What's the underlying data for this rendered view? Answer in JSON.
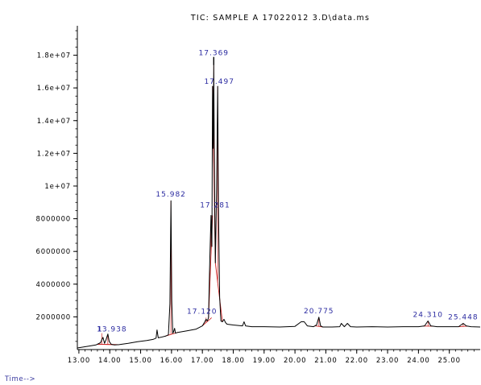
{
  "chart_data": {
    "type": "line",
    "title": "TIC: SAMPLE A  17022012 3.D\\data.ms",
    "xlabel": "Time-->",
    "ylabel": "",
    "x_ticks": [
      "13.00",
      "14.00",
      "15.00",
      "16.00",
      "17.00",
      "18.00",
      "19.00",
      "20.00",
      "21.00",
      "22.00",
      "23.00",
      "24.00",
      "25.00"
    ],
    "y_ticks": [
      "2000000",
      "4000000",
      "6000000",
      "8000000",
      "1e+07",
      "1.2e+07",
      "1.4e+07",
      "1.6e+07",
      "1.8e+07"
    ],
    "xlim": [
      12.95,
      26.0
    ],
    "ylim": [
      0,
      19800000
    ],
    "grid": false,
    "series": [
      {
        "color": "#000000",
        "x": [
          12.95,
          13.3,
          13.55,
          13.7,
          13.78,
          13.83,
          13.88,
          13.938,
          13.98,
          14.05,
          14.15,
          14.3,
          14.6,
          14.9,
          15.2,
          15.4,
          15.5,
          15.53,
          15.57,
          15.65,
          15.8,
          15.9,
          15.95,
          15.982,
          16.01,
          16.04,
          16.07,
          16.1,
          16.13,
          16.2,
          16.5,
          16.8,
          17.0,
          17.08,
          17.12,
          17.16,
          17.2,
          17.24,
          17.281,
          17.31,
          17.33,
          17.35,
          17.369,
          17.39,
          17.42,
          17.46,
          17.497,
          17.52,
          17.56,
          17.6,
          17.65,
          17.7,
          17.75,
          17.8,
          18.0,
          18.3,
          18.35,
          18.4,
          18.6,
          19.0,
          19.5,
          20.0,
          20.2,
          20.3,
          20.4,
          20.6,
          20.7,
          20.775,
          20.83,
          20.9,
          21.2,
          21.45,
          21.5,
          21.6,
          21.7,
          21.8,
          22.0,
          22.5,
          23.0,
          23.5,
          24.0,
          24.2,
          24.31,
          24.4,
          24.6,
          25.0,
          25.3,
          25.448,
          25.55,
          25.7,
          26.0
        ],
        "y": [
          100000,
          200000,
          280000,
          420000,
          750000,
          380000,
          600000,
          950000,
          500000,
          320000,
          280000,
          300000,
          380000,
          480000,
          550000,
          620000,
          700000,
          1200000,
          720000,
          750000,
          820000,
          900000,
          2800000,
          9100000,
          3000000,
          1000000,
          1100000,
          1300000,
          1000000,
          1050000,
          1150000,
          1250000,
          1450000,
          1700000,
          1850000,
          1750000,
          1950000,
          5500000,
          8200000,
          6300000,
          16100000,
          12300000,
          17400000,
          10800000,
          5300000,
          9800000,
          16100000,
          8800000,
          3200000,
          1750000,
          1700000,
          1850000,
          1650000,
          1550000,
          1500000,
          1450000,
          1700000,
          1450000,
          1400000,
          1400000,
          1380000,
          1420000,
          1700000,
          1700000,
          1450000,
          1400000,
          1500000,
          1980000,
          1450000,
          1380000,
          1380000,
          1400000,
          1600000,
          1400000,
          1600000,
          1400000,
          1380000,
          1400000,
          1380000,
          1400000,
          1400000,
          1450000,
          1750000,
          1450000,
          1400000,
          1400000,
          1400000,
          1600000,
          1450000,
          1400000,
          1380000
        ]
      }
    ],
    "peaks": [
      {
        "label": "1",
        "rt": 13.74,
        "height": 1000000,
        "base": [
          13.6,
          14.3
        ]
      },
      {
        "label": "13.938",
        "rt": 13.938,
        "height": 950000,
        "base": [
          13.6,
          14.3
        ]
      },
      {
        "label": "15.982",
        "rt": 15.982,
        "height": 9100000,
        "base": [
          15.8,
          16.2
        ]
      },
      {
        "label": "17.120",
        "rt": 17.12,
        "height": 1950000,
        "base": [
          17.0,
          17.3
        ]
      },
      {
        "label": "17.281",
        "rt": 17.281,
        "height": 8200000,
        "base": [
          17.2,
          17.33
        ]
      },
      {
        "label": "17.369",
        "rt": 17.369,
        "height": 17400000,
        "base": [
          17.33,
          17.42
        ]
      },
      {
        "label": "17.497",
        "rt": 17.497,
        "height": 16100000,
        "base": [
          17.42,
          17.65
        ]
      },
      {
        "label": "20.775",
        "rt": 20.775,
        "height": 1980000,
        "base": [
          20.65,
          20.9
        ]
      },
      {
        "label": "24.310",
        "rt": 24.31,
        "height": 1750000,
        "base": [
          24.15,
          24.5
        ]
      },
      {
        "label": "25.448",
        "rt": 25.448,
        "height": 1600000,
        "base": [
          25.3,
          25.6
        ]
      }
    ],
    "colors": {
      "trace": "#000000",
      "baseline": "#cc2222",
      "peak_label": "#2a2aa0",
      "axis": "#000000"
    }
  }
}
